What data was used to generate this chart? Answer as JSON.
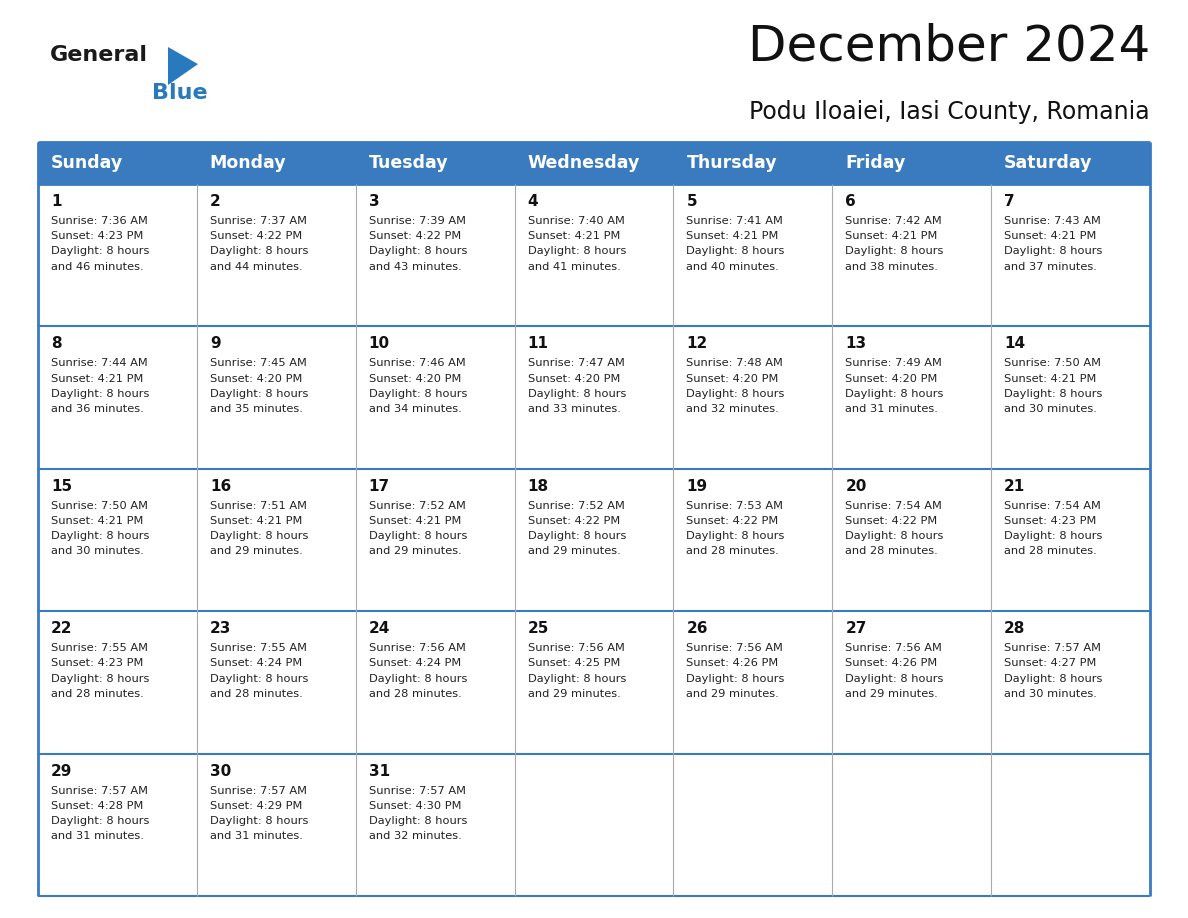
{
  "title": "December 2024",
  "subtitle": "Podu Iloaiei, Iasi County, Romania",
  "header_color": "#3a7bbf",
  "header_text_color": "#ffffff",
  "bg_color": "#ffffff",
  "border_color": "#3a7bbf",
  "light_border_color": "#aaaaaa",
  "days_of_week": [
    "Sunday",
    "Monday",
    "Tuesday",
    "Wednesday",
    "Thursday",
    "Friday",
    "Saturday"
  ],
  "weeks": [
    [
      {
        "day": 1,
        "sunrise": "7:36 AM",
        "sunset": "4:23 PM",
        "daylight_suffix": "46 minutes."
      },
      {
        "day": 2,
        "sunrise": "7:37 AM",
        "sunset": "4:22 PM",
        "daylight_suffix": "44 minutes."
      },
      {
        "day": 3,
        "sunrise": "7:39 AM",
        "sunset": "4:22 PM",
        "daylight_suffix": "43 minutes."
      },
      {
        "day": 4,
        "sunrise": "7:40 AM",
        "sunset": "4:21 PM",
        "daylight_suffix": "41 minutes."
      },
      {
        "day": 5,
        "sunrise": "7:41 AM",
        "sunset": "4:21 PM",
        "daylight_suffix": "40 minutes."
      },
      {
        "day": 6,
        "sunrise": "7:42 AM",
        "sunset": "4:21 PM",
        "daylight_suffix": "38 minutes."
      },
      {
        "day": 7,
        "sunrise": "7:43 AM",
        "sunset": "4:21 PM",
        "daylight_suffix": "37 minutes."
      }
    ],
    [
      {
        "day": 8,
        "sunrise": "7:44 AM",
        "sunset": "4:21 PM",
        "daylight_suffix": "36 minutes."
      },
      {
        "day": 9,
        "sunrise": "7:45 AM",
        "sunset": "4:20 PM",
        "daylight_suffix": "35 minutes."
      },
      {
        "day": 10,
        "sunrise": "7:46 AM",
        "sunset": "4:20 PM",
        "daylight_suffix": "34 minutes."
      },
      {
        "day": 11,
        "sunrise": "7:47 AM",
        "sunset": "4:20 PM",
        "daylight_suffix": "33 minutes."
      },
      {
        "day": 12,
        "sunrise": "7:48 AM",
        "sunset": "4:20 PM",
        "daylight_suffix": "32 minutes."
      },
      {
        "day": 13,
        "sunrise": "7:49 AM",
        "sunset": "4:20 PM",
        "daylight_suffix": "31 minutes."
      },
      {
        "day": 14,
        "sunrise": "7:50 AM",
        "sunset": "4:21 PM",
        "daylight_suffix": "30 minutes."
      }
    ],
    [
      {
        "day": 15,
        "sunrise": "7:50 AM",
        "sunset": "4:21 PM",
        "daylight_suffix": "30 minutes."
      },
      {
        "day": 16,
        "sunrise": "7:51 AM",
        "sunset": "4:21 PM",
        "daylight_suffix": "29 minutes."
      },
      {
        "day": 17,
        "sunrise": "7:52 AM",
        "sunset": "4:21 PM",
        "daylight_suffix": "29 minutes."
      },
      {
        "day": 18,
        "sunrise": "7:52 AM",
        "sunset": "4:22 PM",
        "daylight_suffix": "29 minutes."
      },
      {
        "day": 19,
        "sunrise": "7:53 AM",
        "sunset": "4:22 PM",
        "daylight_suffix": "28 minutes."
      },
      {
        "day": 20,
        "sunrise": "7:54 AM",
        "sunset": "4:22 PM",
        "daylight_suffix": "28 minutes."
      },
      {
        "day": 21,
        "sunrise": "7:54 AM",
        "sunset": "4:23 PM",
        "daylight_suffix": "28 minutes."
      }
    ],
    [
      {
        "day": 22,
        "sunrise": "7:55 AM",
        "sunset": "4:23 PM",
        "daylight_suffix": "28 minutes."
      },
      {
        "day": 23,
        "sunrise": "7:55 AM",
        "sunset": "4:24 PM",
        "daylight_suffix": "28 minutes."
      },
      {
        "day": 24,
        "sunrise": "7:56 AM",
        "sunset": "4:24 PM",
        "daylight_suffix": "28 minutes."
      },
      {
        "day": 25,
        "sunrise": "7:56 AM",
        "sunset": "4:25 PM",
        "daylight_suffix": "29 minutes."
      },
      {
        "day": 26,
        "sunrise": "7:56 AM",
        "sunset": "4:26 PM",
        "daylight_suffix": "29 minutes."
      },
      {
        "day": 27,
        "sunrise": "7:56 AM",
        "sunset": "4:26 PM",
        "daylight_suffix": "29 minutes."
      },
      {
        "day": 28,
        "sunrise": "7:57 AM",
        "sunset": "4:27 PM",
        "daylight_suffix": "30 minutes."
      }
    ],
    [
      {
        "day": 29,
        "sunrise": "7:57 AM",
        "sunset": "4:28 PM",
        "daylight_suffix": "31 minutes."
      },
      {
        "day": 30,
        "sunrise": "7:57 AM",
        "sunset": "4:29 PM",
        "daylight_suffix": "31 minutes."
      },
      {
        "day": 31,
        "sunrise": "7:57 AM",
        "sunset": "4:30 PM",
        "daylight_suffix": "32 minutes."
      },
      null,
      null,
      null,
      null
    ]
  ],
  "logo_general_color": "#1a1a1a",
  "logo_blue_color": "#2979be",
  "title_fontsize": 36,
  "subtitle_fontsize": 17,
  "header_fontsize": 12.5,
  "day_number_fontsize": 11,
  "cell_text_fontsize": 8.2
}
